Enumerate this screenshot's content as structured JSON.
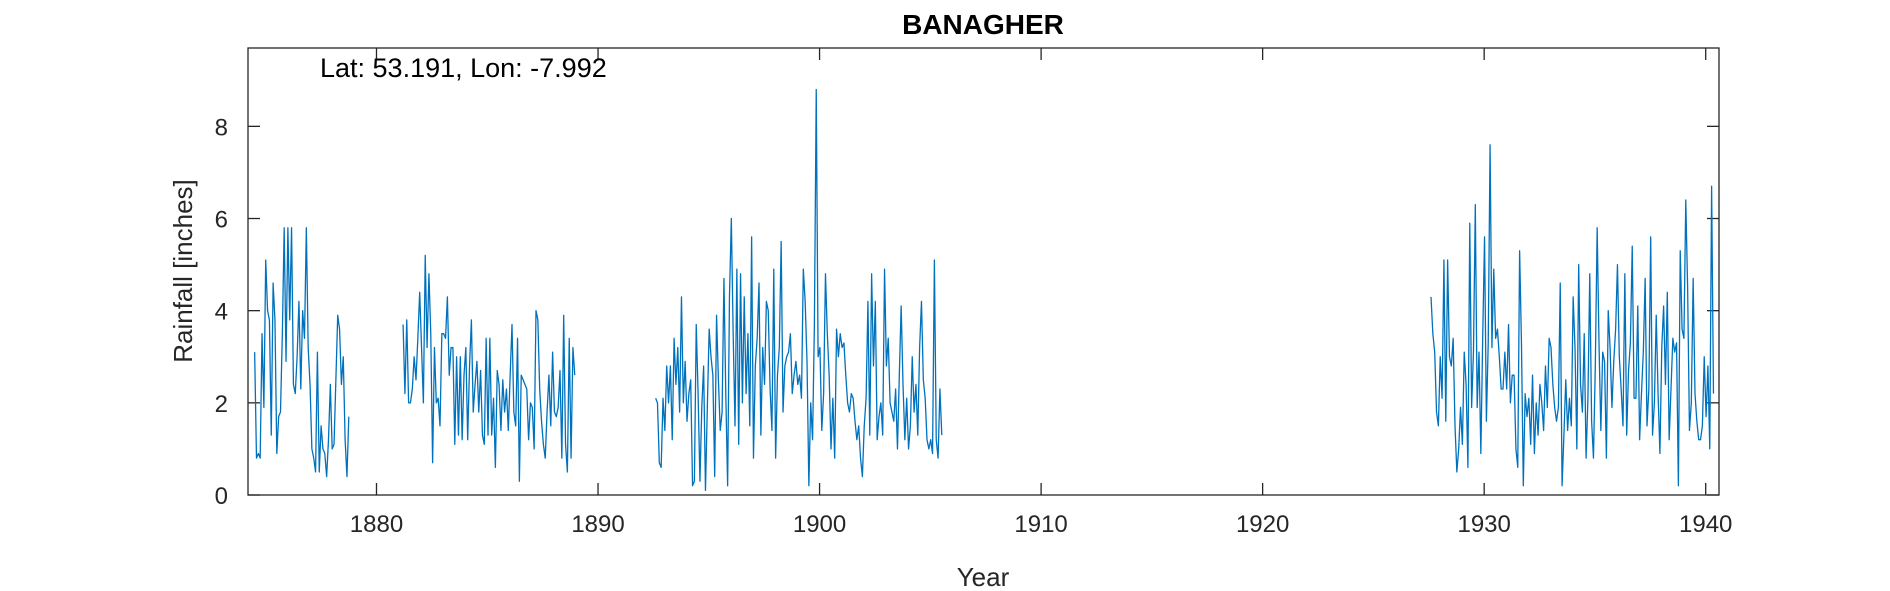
{
  "chart_data": {
    "type": "line",
    "title": "BANAGHER",
    "xlabel": "Year",
    "ylabel": "Rainfall [inches]",
    "annotation": "Lat: 53.191, Lon: -7.992",
    "xlim": [
      1874.2,
      1940.6
    ],
    "ylim": [
      0,
      9.7
    ],
    "x_ticks": [
      1880,
      1890,
      1900,
      1910,
      1920,
      1930,
      1940
    ],
    "y_ticks": [
      0,
      2,
      4,
      6,
      8
    ],
    "grid": false,
    "series_color": "#0072BD",
    "series": [
      {
        "segments": [
          {
            "start": 1874.5,
            "values": [
              3.1,
              0.8,
              0.9,
              0.8,
              3.5,
              1.9,
              5.1,
              4.0,
              3.8,
              1.3,
              4.6,
              3.8,
              0.9,
              1.7,
              1.8,
              3.5,
              5.8,
              2.9,
              5.8,
              3.8,
              5.8,
              2.4,
              2.2,
              3.0,
              4.2,
              2.3,
              4.0,
              3.4,
              5.8,
              3.2,
              2.4,
              1.0,
              0.8,
              0.5,
              3.1,
              0.5,
              1.5,
              1.0,
              0.9,
              0.4,
              1.2,
              2.4,
              1.0,
              1.1,
              2.5,
              3.9,
              3.6,
              2.4,
              3.0,
              1.2,
              0.4,
              1.7
            ]
          },
          {
            "start": 1881.2,
            "values": [
              3.7,
              2.2,
              3.8,
              2.0,
              2.0,
              2.3,
              3.0,
              2.5,
              3.4,
              4.4,
              3.2,
              2.0,
              5.2,
              3.2,
              4.8,
              3.5,
              0.7,
              3.2,
              2.0,
              2.1,
              1.5,
              3.5,
              3.5,
              3.4,
              4.3,
              2.6,
              3.2,
              3.2,
              1.1,
              3.0,
              1.3,
              3.0,
              1.2,
              2.6,
              3.2,
              1.2,
              2.8,
              3.8,
              1.8,
              2.4,
              2.9,
              1.8,
              2.7,
              1.3,
              1.1,
              3.4,
              1.3,
              3.4,
              1.3,
              2.1,
              0.6,
              2.7,
              2.4,
              1.4,
              2.5,
              1.8,
              2.3,
              1.4,
              2.6,
              3.7,
              1.8,
              1.5,
              3.4,
              0.3,
              2.6,
              2.5,
              2.4,
              2.3,
              1.2,
              2.0,
              1.9,
              1.0,
              4.0,
              3.8,
              2.3,
              1.6,
              1.1,
              0.8,
              1.8,
              2.6,
              1.5,
              3.1,
              1.8,
              1.7,
              1.9,
              2.7,
              0.8,
              3.9,
              1.1,
              0.5,
              3.4,
              0.8,
              3.2,
              2.6
            ]
          },
          {
            "start": 1892.6,
            "values": [
              2.1,
              2.0,
              0.7,
              0.6,
              2.1,
              1.4,
              2.8,
              2.0,
              2.8,
              1.2,
              3.4,
              2.4,
              3.2,
              1.8,
              4.3,
              2.0,
              2.9,
              1.6,
              2.2,
              2.5,
              0.2,
              0.3,
              3.7,
              2.2,
              0.3,
              1.9,
              2.8,
              0.1,
              1.9,
              3.6,
              3.0,
              2.6,
              0.4,
              3.9,
              2.5,
              1.4,
              1.8,
              4.7,
              2.2,
              0.2,
              4.3,
              6.0,
              3.5,
              1.5,
              4.9,
              1.1,
              4.8,
              2.0,
              4.3,
              2.2,
              3.5,
              1.5,
              5.6,
              0.8,
              2.8,
              3.4,
              4.6,
              1.3,
              3.2,
              2.4,
              4.2,
              4.0,
              2.3,
              1.4,
              4.9,
              0.8,
              2.6,
              3.2,
              5.5,
              1.8,
              2.8,
              3.0,
              3.1,
              3.5,
              2.2,
              2.6,
              2.9,
              2.4,
              2.6,
              2.1,
              4.9,
              4.2,
              2.9,
              0.2,
              2.0,
              1.2,
              3.7,
              8.8,
              3.0,
              3.2,
              1.4,
              2.2,
              4.8,
              3.5,
              2.6,
              1.0,
              2.1,
              0.8,
              3.6,
              3.0,
              3.5,
              3.2,
              3.3,
              2.6,
              2.0,
              1.8,
              2.2,
              2.1,
              1.6,
              1.2,
              1.5,
              0.8,
              0.4,
              1.5,
              2.1,
              4.2,
              1.3,
              4.8,
              2.8,
              4.2,
              1.2,
              1.7,
              2.0,
              1.3,
              4.9,
              2.8,
              3.4,
              2.0,
              1.8,
              1.6,
              2.3,
              1.0,
              2.6,
              4.1,
              2.4,
              1.2,
              2.1,
              1.0,
              1.5,
              3.0,
              1.8,
              2.4,
              1.3,
              3.2,
              4.2,
              2.5,
              2.1,
              1.2,
              1.0,
              1.2,
              0.9,
              5.1,
              1.2,
              0.8,
              2.3,
              1.3
            ]
          },
          {
            "start": 1927.6,
            "values": [
              4.3,
              3.5,
              3.1,
              1.8,
              1.5,
              3.0,
              2.1,
              5.1,
              1.6,
              5.1,
              3.0,
              2.8,
              3.4,
              1.5,
              0.5,
              1.0,
              1.9,
              1.1,
              3.1,
              2.4,
              0.6,
              5.9,
              1.9,
              3.1,
              6.3,
              1.9,
              3.1,
              0.9,
              3.4,
              5.6,
              1.6,
              3.3,
              7.6,
              3.2,
              4.9,
              3.4,
              3.6,
              3.0,
              2.3,
              2.3,
              3.1,
              2.3,
              3.7,
              2.0,
              2.6,
              2.6,
              1.0,
              0.6,
              5.3,
              3.3,
              0.2,
              2.2,
              1.7,
              2.1,
              1.1,
              2.6,
              0.9,
              2.0,
              1.3,
              2.4,
              2.0,
              1.4,
              2.8,
              1.9,
              3.4,
              3.2,
              2.4,
              1.9,
              1.6,
              1.9,
              4.6,
              0.2,
              1.3,
              2.5,
              1.4,
              2.1,
              1.5,
              4.3,
              3.2,
              1.0,
              5.0,
              2.4,
              1.8,
              3.5,
              0.8,
              2.1,
              4.8,
              1.6,
              0.8,
              2.8,
              5.8,
              3.3,
              1.4,
              3.1,
              2.9,
              0.8,
              4.0,
              3.2,
              1.9,
              2.9,
              3.6,
              5.0,
              3.0,
              2.3,
              1.5,
              4.8,
              1.3,
              2.7,
              3.3,
              5.4,
              2.1,
              2.1,
              4.1,
              1.2,
              2.2,
              3.1,
              4.7,
              1.5,
              2.3,
              5.6,
              1.3,
              2.0,
              3.9,
              2.2,
              0.9,
              3.2,
              4.1,
              2.4,
              4.4,
              1.2,
              2.3,
              3.4,
              3.1,
              3.3,
              0.2,
              5.3,
              3.6,
              3.4,
              6.4,
              4.5,
              1.4,
              2.0,
              4.7,
              2.2,
              1.6,
              1.2,
              1.2,
              1.5,
              3.0,
              1.7,
              2.8,
              1.0,
              6.7,
              2.2
            ]
          }
        ]
      }
    ]
  }
}
